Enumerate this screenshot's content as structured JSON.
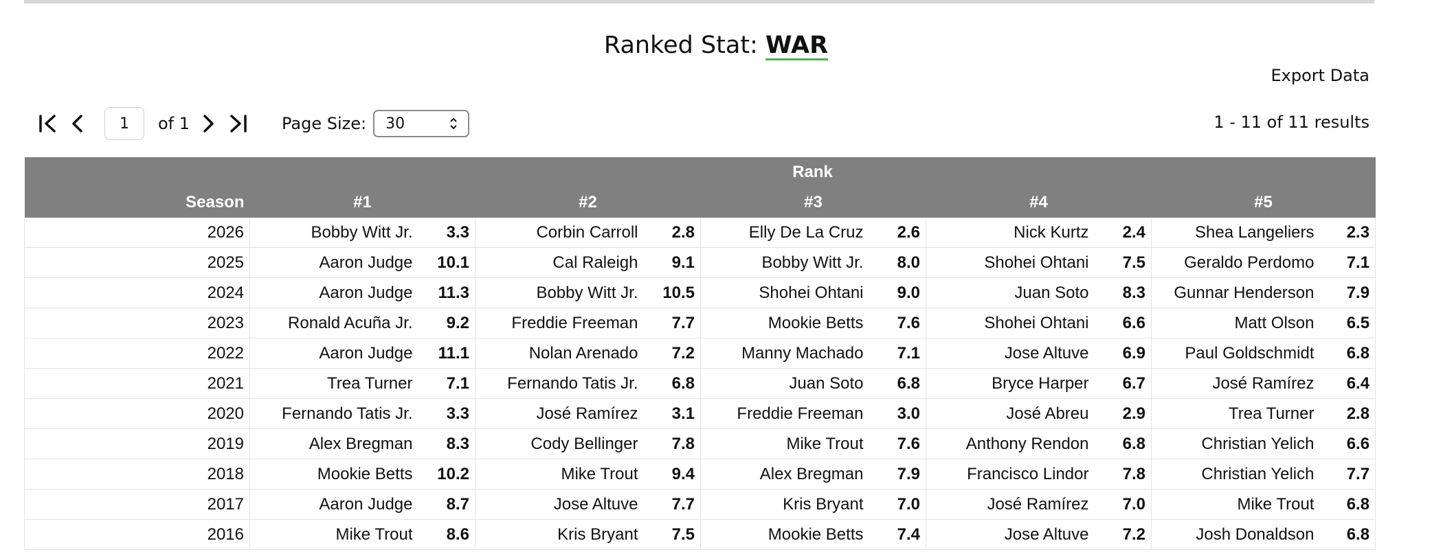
{
  "header": {
    "title_prefix": "Ranked Stat:",
    "stat": "WAR",
    "export_label": "Export Data"
  },
  "pager": {
    "current_page": "1",
    "of_label": "of 1",
    "page_size_label": "Page Size:",
    "page_size": "30",
    "results": "1 - 11 of 11 results"
  },
  "table": {
    "group_header": "Rank",
    "columns": [
      "Season",
      "#1",
      "#2",
      "#3",
      "#4",
      "#5"
    ],
    "rows": [
      {
        "season": "2026",
        "r": [
          [
            "Bobby Witt Jr.",
            "3.3"
          ],
          [
            "Corbin Carroll",
            "2.8"
          ],
          [
            "Elly De La Cruz",
            "2.6"
          ],
          [
            "Nick Kurtz",
            "2.4"
          ],
          [
            "Shea Langeliers",
            "2.3"
          ]
        ]
      },
      {
        "season": "2025",
        "r": [
          [
            "Aaron Judge",
            "10.1"
          ],
          [
            "Cal Raleigh",
            "9.1"
          ],
          [
            "Bobby Witt Jr.",
            "8.0"
          ],
          [
            "Shohei Ohtani",
            "7.5"
          ],
          [
            "Geraldo Perdomo",
            "7.1"
          ]
        ]
      },
      {
        "season": "2024",
        "r": [
          [
            "Aaron Judge",
            "11.3"
          ],
          [
            "Bobby Witt Jr.",
            "10.5"
          ],
          [
            "Shohei Ohtani",
            "9.0"
          ],
          [
            "Juan Soto",
            "8.3"
          ],
          [
            "Gunnar Henderson",
            "7.9"
          ]
        ]
      },
      {
        "season": "2023",
        "r": [
          [
            "Ronald Acuña Jr.",
            "9.2"
          ],
          [
            "Freddie Freeman",
            "7.7"
          ],
          [
            "Mookie Betts",
            "7.6"
          ],
          [
            "Shohei Ohtani",
            "6.6"
          ],
          [
            "Matt Olson",
            "6.5"
          ]
        ]
      },
      {
        "season": "2022",
        "r": [
          [
            "Aaron Judge",
            "11.1"
          ],
          [
            "Nolan Arenado",
            "7.2"
          ],
          [
            "Manny Machado",
            "7.1"
          ],
          [
            "Jose Altuve",
            "6.9"
          ],
          [
            "Paul Goldschmidt",
            "6.8"
          ]
        ]
      },
      {
        "season": "2021",
        "r": [
          [
            "Trea Turner",
            "7.1"
          ],
          [
            "Fernando Tatis Jr.",
            "6.8"
          ],
          [
            "Juan Soto",
            "6.8"
          ],
          [
            "Bryce Harper",
            "6.7"
          ],
          [
            "José Ramírez",
            "6.4"
          ]
        ]
      },
      {
        "season": "2020",
        "r": [
          [
            "Fernando Tatis Jr.",
            "3.3"
          ],
          [
            "José Ramírez",
            "3.1"
          ],
          [
            "Freddie Freeman",
            "3.0"
          ],
          [
            "José Abreu",
            "2.9"
          ],
          [
            "Trea Turner",
            "2.8"
          ]
        ]
      },
      {
        "season": "2019",
        "r": [
          [
            "Alex Bregman",
            "8.3"
          ],
          [
            "Cody Bellinger",
            "7.8"
          ],
          [
            "Mike Trout",
            "7.6"
          ],
          [
            "Anthony Rendon",
            "6.8"
          ],
          [
            "Christian Yelich",
            "6.6"
          ]
        ]
      },
      {
        "season": "2018",
        "r": [
          [
            "Mookie Betts",
            "10.2"
          ],
          [
            "Mike Trout",
            "9.4"
          ],
          [
            "Alex Bregman",
            "7.9"
          ],
          [
            "Francisco Lindor",
            "7.8"
          ],
          [
            "Christian Yelich",
            "7.7"
          ]
        ]
      },
      {
        "season": "2017",
        "r": [
          [
            "Aaron Judge",
            "8.7"
          ],
          [
            "Jose Altuve",
            "7.7"
          ],
          [
            "Kris Bryant",
            "7.0"
          ],
          [
            "José Ramírez",
            "7.0"
          ],
          [
            "Mike Trout",
            "6.8"
          ]
        ]
      },
      {
        "season": "2016",
        "r": [
          [
            "Mike Trout",
            "8.6"
          ],
          [
            "Kris Bryant",
            "7.5"
          ],
          [
            "Mookie Betts",
            "7.4"
          ],
          [
            "Jose Altuve",
            "7.2"
          ],
          [
            "Josh Donaldson",
            "6.8"
          ]
        ]
      }
    ]
  }
}
